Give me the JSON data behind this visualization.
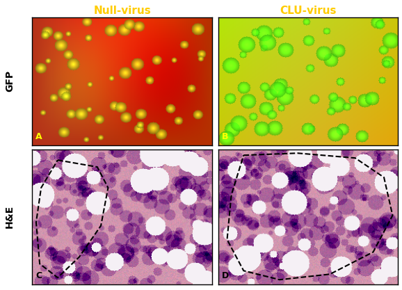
{
  "figsize": [
    5.78,
    4.17
  ],
  "dpi": 100,
  "background_color": "#ffffff",
  "col_labels": [
    "Null-virus",
    "CLU-virus"
  ],
  "row_labels": [
    "GFP",
    "H&E"
  ],
  "panel_labels": [
    "A",
    "B",
    "C",
    "D"
  ],
  "col_label_color": "#ffcc00",
  "col_label_fontsize": 11,
  "row_label_color": "#000000",
  "row_label_fontsize": 10,
  "panel_label_color": "#ffff00",
  "panel_label_he_color": "#000000",
  "panel_label_fontsize": 9,
  "border_color": "#000000",
  "border_linewidth": 1.0
}
